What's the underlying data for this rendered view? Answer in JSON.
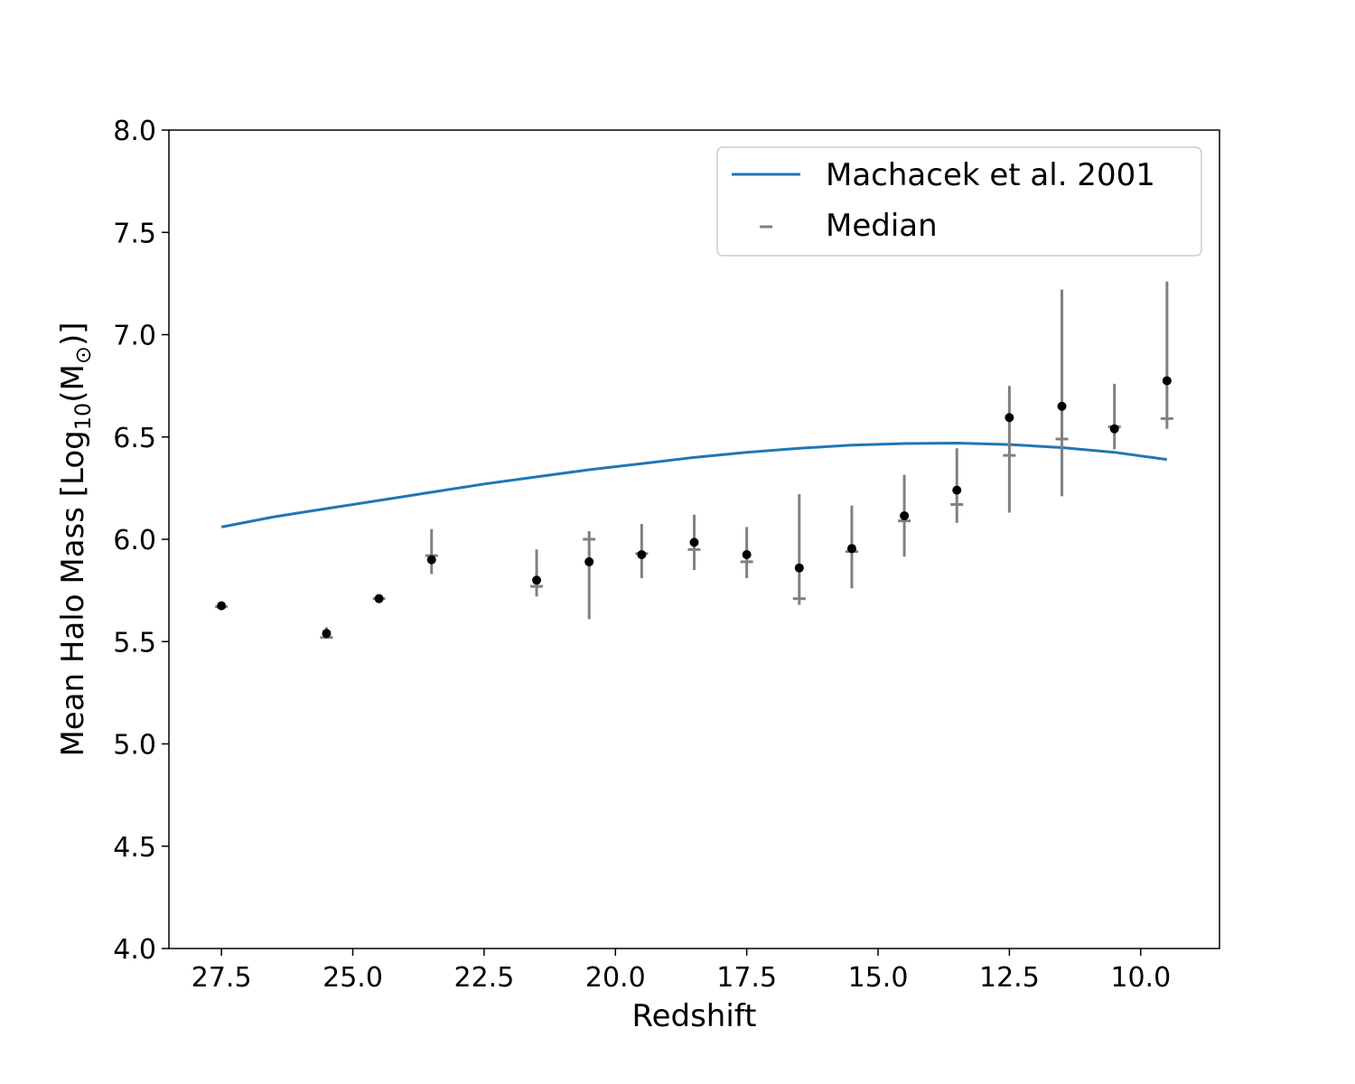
{
  "chart_data": {
    "type": "scatter",
    "xlabel": "Redshift",
    "ylabel": "Mean Halo Mass [Log",
    "ylabel_sub": "10",
    "ylabel_tail": "(M",
    "ylabel_sun": "⊙",
    "ylabel_close": ")]",
    "xlim": [
      28.5,
      8.5
    ],
    "ylim": [
      4.0,
      8.0
    ],
    "x_reversed": true,
    "xticks": [
      27.5,
      25.0,
      22.5,
      20.0,
      17.5,
      15.0,
      12.5,
      10.0
    ],
    "xtick_labels": [
      "27.5",
      "25.0",
      "22.5",
      "20.0",
      "17.5",
      "15.0",
      "12.5",
      "10.0"
    ],
    "yticks": [
      4.0,
      4.5,
      5.0,
      5.5,
      6.0,
      6.5,
      7.0,
      7.5,
      8.0
    ],
    "ytick_labels": [
      "4.0",
      "4.5",
      "5.0",
      "5.5",
      "6.0",
      "6.5",
      "7.0",
      "7.5",
      "8.0"
    ],
    "grid": false,
    "legend": {
      "placement": "top-right",
      "entries": [
        "Machacek et al. 2001",
        "Median"
      ]
    },
    "colors": {
      "line": "#1f77b4",
      "mean_marker": "#000000",
      "errorbar": "#808080",
      "median": "#808080"
    },
    "series": [
      {
        "name": "Machacek et al. 2001",
        "kind": "line",
        "x": [
          27.5,
          26.5,
          25.5,
          24.5,
          23.5,
          22.5,
          21.5,
          20.5,
          19.5,
          18.5,
          17.5,
          16.5,
          15.5,
          14.5,
          13.5,
          12.5,
          11.5,
          10.5,
          9.5
        ],
        "y": [
          6.06,
          6.11,
          6.15,
          6.19,
          6.23,
          6.27,
          6.305,
          6.34,
          6.37,
          6.4,
          6.425,
          6.445,
          6.46,
          6.468,
          6.47,
          6.463,
          6.448,
          6.425,
          6.39
        ]
      },
      {
        "name": "Median",
        "kind": "median-marker",
        "x": [
          27.5,
          25.5,
          24.5,
          23.5,
          21.5,
          20.5,
          19.5,
          18.5,
          17.5,
          16.5,
          15.5,
          14.5,
          13.5,
          12.5,
          11.5,
          10.5,
          9.5
        ],
        "y": [
          5.67,
          5.52,
          5.71,
          5.92,
          5.77,
          6.0,
          5.93,
          5.95,
          5.89,
          5.71,
          5.94,
          6.09,
          6.17,
          6.41,
          6.49,
          6.55,
          6.59
        ]
      },
      {
        "kind": "mean-with-error",
        "x": [
          27.5,
          25.5,
          24.5,
          23.5,
          21.5,
          20.5,
          19.5,
          18.5,
          17.5,
          16.5,
          15.5,
          14.5,
          13.5,
          12.5,
          11.5,
          10.5,
          9.5
        ],
        "y": [
          5.675,
          5.54,
          5.71,
          5.9,
          5.8,
          5.89,
          5.925,
          5.985,
          5.925,
          5.86,
          5.955,
          6.115,
          6.24,
          6.595,
          6.65,
          6.54,
          6.775
        ],
        "y_low": [
          5.675,
          5.52,
          5.71,
          5.83,
          5.72,
          5.61,
          5.81,
          5.85,
          5.81,
          5.68,
          5.76,
          5.915,
          6.08,
          6.13,
          6.21,
          6.44,
          6.54
        ],
        "y_high": [
          5.675,
          5.57,
          5.71,
          6.05,
          5.95,
          6.04,
          6.075,
          6.12,
          6.06,
          6.22,
          6.165,
          6.315,
          6.445,
          6.75,
          7.22,
          6.76,
          7.26
        ]
      }
    ]
  }
}
